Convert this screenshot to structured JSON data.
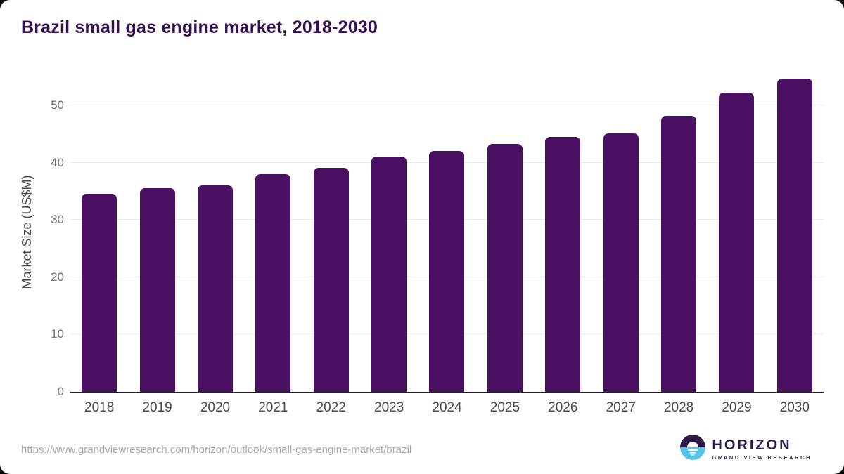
{
  "chart_data": {
    "type": "bar",
    "title": "Brazil small gas engine market, 2018-2030",
    "categories": [
      "2018",
      "2019",
      "2020",
      "2021",
      "2022",
      "2023",
      "2024",
      "2025",
      "2026",
      "2027",
      "2028",
      "2029",
      "2030"
    ],
    "values": [
      34.6,
      35.5,
      36.0,
      38.0,
      39.1,
      41.1,
      42.0,
      43.2,
      44.5,
      45.1,
      48.2,
      52.2,
      54.6
    ],
    "xlabel": "",
    "ylabel": "Market Size (US$M)",
    "ylim": [
      0,
      56
    ],
    "yticks": [
      0,
      10,
      20,
      30,
      40,
      50
    ],
    "grid": "horizontal only, light gray, no line at 0 (solid dark axis line instead)",
    "legend": "none",
    "bar_color": "#4a1163"
  },
  "footer": {
    "source_url": "https://www.grandviewresearch.com/horizon/outlook/small-gas-engine-market/brazil",
    "logo": {
      "brand": "HORIZON",
      "sub_brand": "GRAND VIEW RESEARCH"
    }
  },
  "colors": {
    "title_purple": "#33104e",
    "bar_purple": "#4a1163",
    "logo_purple": "#2e1a47",
    "logo_blue": "#56c3ea",
    "axis_line": "#212121",
    "gridline": "#e8e8e8"
  }
}
